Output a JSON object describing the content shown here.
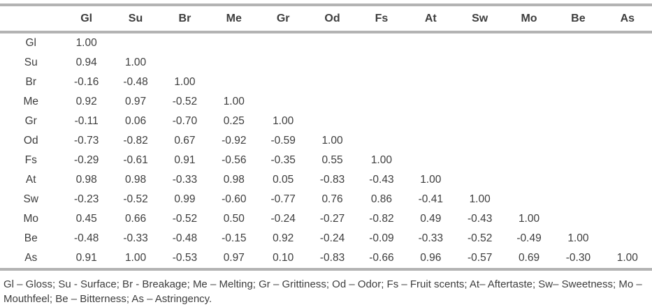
{
  "colors": {
    "rule": "#b3b3b3",
    "text": "#3d3d3d",
    "background": "#ffffff"
  },
  "table": {
    "corner_label": "",
    "columns": [
      "Gl",
      "Su",
      "Br",
      "Me",
      "Gr",
      "Od",
      "Fs",
      "At",
      "Sw",
      "Mo",
      "Be",
      "As"
    ],
    "rows": [
      {
        "label": "Gl",
        "values": [
          "1.00"
        ]
      },
      {
        "label": "Su",
        "values": [
          "0.94",
          "1.00"
        ]
      },
      {
        "label": "Br",
        "values": [
          "-0.16",
          "-0.48",
          "1.00"
        ]
      },
      {
        "label": "Me",
        "values": [
          "0.92",
          "0.97",
          "-0.52",
          "1.00"
        ]
      },
      {
        "label": "Gr",
        "values": [
          "-0.11",
          "0.06",
          "-0.70",
          "0.25",
          "1.00"
        ]
      },
      {
        "label": "Od",
        "values": [
          "-0.73",
          "-0.82",
          "0.67",
          "-0.92",
          "-0.59",
          "1.00"
        ]
      },
      {
        "label": "Fs",
        "values": [
          "-0.29",
          "-0.61",
          "0.91",
          "-0.56",
          "-0.35",
          "0.55",
          "1.00"
        ]
      },
      {
        "label": "At",
        "values": [
          "0.98",
          "0.98",
          "-0.33",
          "0.98",
          "0.05",
          "-0.83",
          "-0.43",
          "1.00"
        ]
      },
      {
        "label": "Sw",
        "values": [
          "-0.23",
          "-0.52",
          "0.99",
          "-0.60",
          "-0.77",
          "0.76",
          "0.86",
          "-0.41",
          "1.00"
        ]
      },
      {
        "label": "Mo",
        "values": [
          "0.45",
          "0.66",
          "-0.52",
          "0.50",
          "-0.24",
          "-0.27",
          "-0.82",
          "0.49",
          "-0.43",
          "1.00"
        ]
      },
      {
        "label": "Be",
        "values": [
          "-0.48",
          "-0.33",
          "-0.48",
          "-0.15",
          "0.92",
          "-0.24",
          "-0.09",
          "-0.33",
          "-0.52",
          "-0.49",
          "1.00"
        ]
      },
      {
        "label": "As",
        "values": [
          "0.91",
          "1.00",
          "-0.53",
          "0.97",
          "0.10",
          "-0.83",
          "-0.66",
          "0.96",
          "-0.57",
          "0.69",
          "-0.30",
          "1.00"
        ]
      }
    ]
  },
  "footnote": {
    "line1": "Gl – Gloss; Su - Surface; Br - Breakage; Me – Melting; Gr – Grittiness; Od – Odor; Fs – Fruit scents; At– Aftertaste; Sw– Sweetness; Mo –",
    "line2": "Mouthfeel; Be – Bitterness; As – Astringency."
  }
}
